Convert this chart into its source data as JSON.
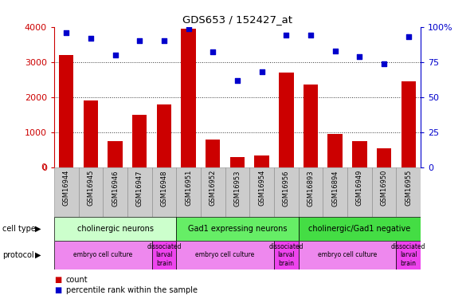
{
  "title": "GDS653 / 152427_at",
  "samples": [
    "GSM16944",
    "GSM16945",
    "GSM16946",
    "GSM16947",
    "GSM16948",
    "GSM16951",
    "GSM16952",
    "GSM16953",
    "GSM16954",
    "GSM16956",
    "GSM16893",
    "GSM16894",
    "GSM16949",
    "GSM16950",
    "GSM16955"
  ],
  "counts": [
    3200,
    1900,
    750,
    1500,
    1800,
    3950,
    800,
    300,
    350,
    2700,
    2350,
    950,
    750,
    550,
    2450
  ],
  "percentiles": [
    96,
    92,
    80,
    90,
    90,
    99,
    82,
    62,
    68,
    94,
    94,
    83,
    79,
    74,
    93
  ],
  "bar_color": "#cc0000",
  "dot_color": "#0000cc",
  "ylim_left": [
    0,
    4000
  ],
  "ylim_right": [
    0,
    100
  ],
  "yticks_left": [
    0,
    1000,
    2000,
    3000,
    4000
  ],
  "yticks_right": [
    0,
    25,
    50,
    75,
    100
  ],
  "cell_types": [
    {
      "label": "cholinergic neurons",
      "start": 0,
      "end": 5,
      "color": "#ccffcc"
    },
    {
      "label": "Gad1 expressing neurons",
      "start": 5,
      "end": 10,
      "color": "#66ee66"
    },
    {
      "label": "cholinergic/Gad1 negative",
      "start": 10,
      "end": 15,
      "color": "#44dd44"
    }
  ],
  "protocols": [
    {
      "label": "embryo cell culture",
      "start": 0,
      "end": 4,
      "color": "#ee88ee"
    },
    {
      "label": "dissociated\nlarval\nbrain",
      "start": 4,
      "end": 5,
      "color": "#ee44ee"
    },
    {
      "label": "embryo cell culture",
      "start": 5,
      "end": 9,
      "color": "#ee88ee"
    },
    {
      "label": "dissociated\nlarval\nbrain",
      "start": 9,
      "end": 10,
      "color": "#ee44ee"
    },
    {
      "label": "embryo cell culture",
      "start": 10,
      "end": 14,
      "color": "#ee88ee"
    },
    {
      "label": "dissociated\nlarval\nbrain",
      "start": 14,
      "end": 15,
      "color": "#ee44ee"
    }
  ],
  "legend_count_color": "#cc0000",
  "legend_dot_color": "#0000cc",
  "grid_color": "#333333",
  "axis_label_color_left": "#cc0000",
  "axis_label_color_right": "#0000cc",
  "xtick_bg_color": "#cccccc",
  "plot_bg_color": "#ffffff",
  "cell_type_separator_color": "#000000",
  "protocol_separator_color": "#000000"
}
